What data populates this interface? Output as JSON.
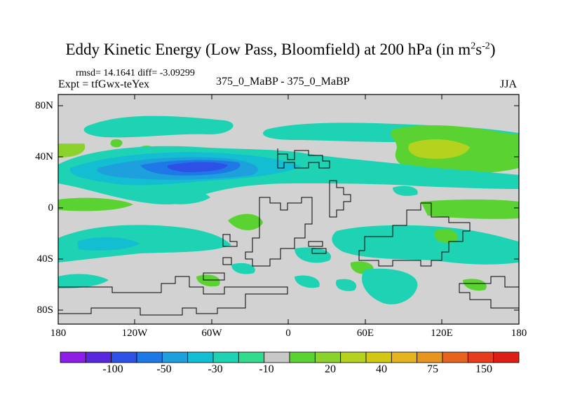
{
  "title": {
    "main": "Eddy Kinetic Energy (Low Pass, Bloomfield) at 200 hPa (in m",
    "sup1": "2",
    "mid": "s",
    "sup2": "-2",
    "end": ")"
  },
  "stats": {
    "rmsd_label": "rmsd= 14.1641 diff= -3.09299"
  },
  "experiment": "Expt = tfGwx-teYex",
  "experiment_diff": "375_0_MaBP - 375_0_MaBP",
  "season": "JJA",
  "axes": {
    "y_ticks": [
      "80N",
      "40N",
      "0",
      "40S",
      "80S"
    ],
    "x_ticks": [
      "180",
      "120W",
      "60W",
      "0",
      "60E",
      "120E",
      "180"
    ]
  },
  "colorbar": {
    "labels": [
      "-100",
      "-50",
      "-30",
      "-10",
      "20",
      "40",
      "75",
      "150"
    ],
    "colors": [
      "#8c1ee6",
      "#5a28dc",
      "#2d50e6",
      "#1e78e6",
      "#1ea0dc",
      "#14bed2",
      "#1ed2b4",
      "#32dc8c",
      "#c8c8c8",
      "#5ad232",
      "#8cd22d",
      "#b4d21e",
      "#d2c814",
      "#e6b41e",
      "#e6961e",
      "#e6641e",
      "#e63c1e",
      "#dc1e14"
    ]
  },
  "map_colors": {
    "background": "#d2d2d2",
    "coastline": "#000000"
  }
}
